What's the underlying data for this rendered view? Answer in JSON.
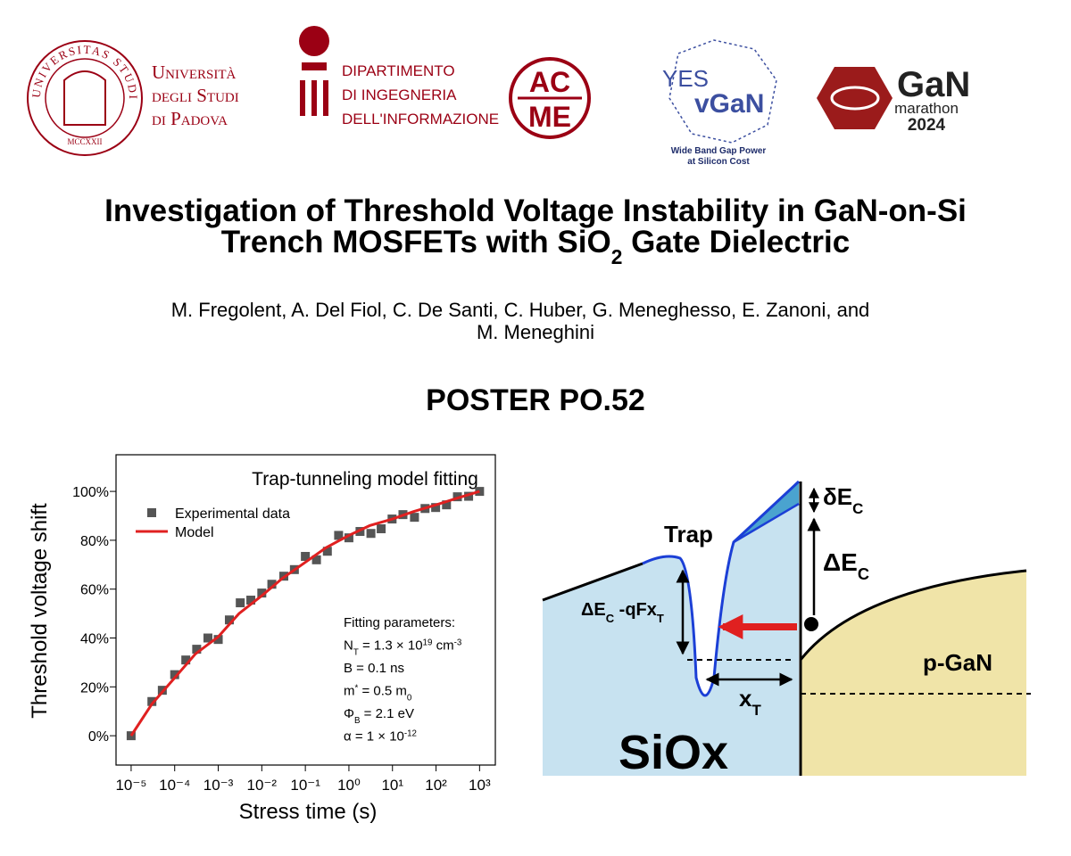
{
  "logos": {
    "unipd_seal": "UNIVERSITAS STUDII PADUANI",
    "unipd_year": "MCCXXII",
    "unipd": [
      "Università",
      "degli Studi",
      "di Padova"
    ],
    "dei": [
      "Dipartimento",
      "di Ingegneria",
      "dell'Informazione"
    ],
    "acme": [
      "AC",
      "ME"
    ],
    "yesvgan": [
      "YES",
      "vGaN"
    ],
    "yesvgan_tagline": [
      "Wide Band Gap Power",
      "at Silicon Cost"
    ],
    "marathon": [
      "GaN",
      "marathon",
      "2024"
    ]
  },
  "title": {
    "line1": "Investigation of Threshold Voltage Instability in GaN-on-Si",
    "line2": [
      {
        "t": "Trench MOSFETs with SiO"
      },
      {
        "sub": "2"
      },
      {
        "t": " Gate Dielectric"
      }
    ]
  },
  "authors": [
    "M. Fregolent, A. Del Fiol, C. De Santi, C. Huber, G. Meneghesso, E. Zanoni, and",
    "M. Meneghini"
  ],
  "poster": "POSTER PO.52",
  "chart_data": {
    "type": "scatter",
    "title": "Trap-tunneling model fitting",
    "x_label": "Stress time (s)",
    "y_label": "Threshold voltage shift",
    "xscale": "log",
    "xlim": [
      4.5e-06,
      2300
    ],
    "ylim": [
      -12,
      115
    ],
    "xticks": [
      {
        "value": 1e-05,
        "label": "10⁻⁵"
      },
      {
        "value": 0.0001,
        "label": "10⁻⁴"
      },
      {
        "value": 0.001,
        "label": "10⁻³"
      },
      {
        "value": 0.01,
        "label": "10⁻²"
      },
      {
        "value": 0.1,
        "label": "10⁻¹"
      },
      {
        "value": 1,
        "label": "10⁰"
      },
      {
        "value": 10,
        "label": "10¹"
      },
      {
        "value": 100,
        "label": "10²"
      },
      {
        "value": 1000,
        "label": "10³"
      }
    ],
    "yticks": [
      {
        "value": 0,
        "label": "0%"
      },
      {
        "value": 20,
        "label": "20%"
      },
      {
        "value": 40,
        "label": "40%"
      },
      {
        "value": 60,
        "label": "60%"
      },
      {
        "value": 80,
        "label": "80%"
      },
      {
        "value": 100,
        "label": "100%"
      }
    ],
    "grid": false,
    "legend": "upper left",
    "series": [
      {
        "name": "Experimental data",
        "type": "scatter",
        "color": "#555555",
        "x": [
          1e-05,
          3e-05,
          5.2e-05,
          0.0001,
          0.00018,
          0.00032,
          0.00058,
          0.001,
          0.0018,
          0.0032,
          0.0056,
          0.01,
          0.017,
          0.032,
          0.056,
          0.1,
          0.18,
          0.32,
          0.58,
          1,
          1.8,
          3.2,
          5.5,
          9.8,
          17.4,
          32,
          56,
          98,
          174,
          310,
          560,
          1000
        ],
        "values": [
          0,
          14,
          18.6,
          25,
          31,
          35.4,
          40,
          39.4,
          47.4,
          54.4,
          55.5,
          58.4,
          62,
          65.3,
          68,
          73.4,
          72,
          75.5,
          82,
          81,
          83.6,
          82.8,
          84.7,
          88.7,
          90.5,
          89.4,
          93,
          93.4,
          94.5,
          97.8,
          98,
          100
        ]
      },
      {
        "name": "Model",
        "type": "line",
        "color": "#e02020",
        "x": [
          1e-05,
          3e-05,
          0.0001,
          0.0003,
          0.001,
          0.003,
          0.01,
          0.03,
          0.1,
          0.3,
          1,
          3,
          10,
          30,
          100,
          300,
          1000
        ],
        "values": [
          0,
          13,
          23.7,
          33.5,
          40.5,
          50,
          57.3,
          64.5,
          71,
          77,
          82,
          86,
          88.7,
          91.7,
          94.5,
          97.2,
          100
        ]
      }
    ],
    "annotation": [
      [
        {
          "t": "Fitting parameters:"
        }
      ],
      [
        {
          "t": "N"
        },
        {
          "sub": "T"
        },
        {
          "t": " = 1.3 × 10"
        },
        {
          "sup": "19"
        },
        {
          "t": " cm"
        },
        {
          "sup": "-3"
        }
      ],
      [
        {
          "t": "B = 0.1 ns"
        }
      ],
      [
        {
          "t": "m"
        },
        {
          "sup": "*"
        },
        {
          "t": " = 0.5 m"
        },
        {
          "sub": "0"
        }
      ],
      [
        {
          "t": "Φ"
        },
        {
          "sub": "B"
        },
        {
          "t": " = 2.1 eV"
        }
      ],
      [
        {
          "t": "α = 1 × 10"
        },
        {
          "sup": "-12"
        }
      ]
    ]
  },
  "diagram": {
    "delta_small": [
      {
        "t": "δE"
      },
      {
        "sub": "C"
      }
    ],
    "delta_big": [
      {
        "t": "ΔE"
      },
      {
        "sub": "C"
      }
    ],
    "trap": [
      {
        "t": "Trap"
      }
    ],
    "energy": [
      {
        "t": "ΔE"
      },
      {
        "sub": "C"
      },
      {
        "t": " -qFx"
      },
      {
        "sub": "T"
      }
    ],
    "xt": [
      {
        "t": "x"
      },
      {
        "sub": "T"
      }
    ],
    "pgan": [
      {
        "t": "p-GaN"
      }
    ],
    "siox": [
      {
        "t": "SiOx"
      }
    ]
  }
}
